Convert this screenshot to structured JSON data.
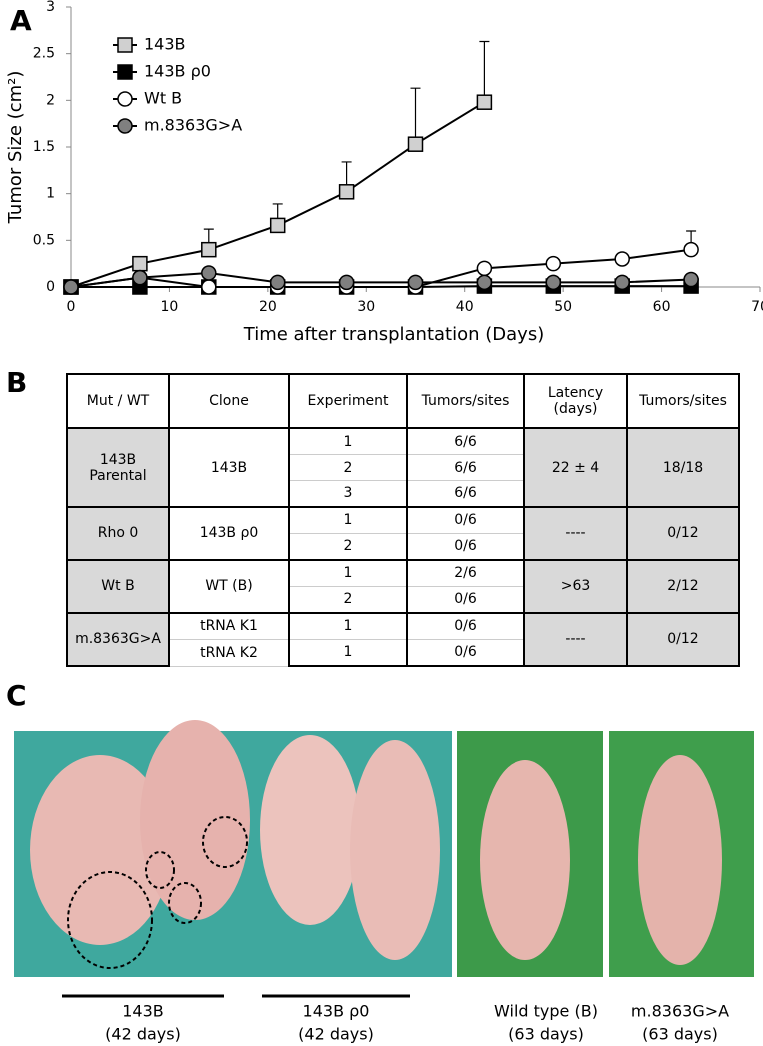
{
  "panel_labels": [
    "A",
    "B",
    "C"
  ],
  "chart_data": {
    "type": "line",
    "x_label": "Time after transplantation (Days)",
    "y_label": "Tumor Size (cm²)",
    "xlim": [
      0,
      70
    ],
    "xticks": [
      0,
      10,
      20,
      30,
      40,
      50,
      60,
      70
    ],
    "ylim": [
      0,
      3
    ],
    "yticks": [
      0,
      0.5,
      1,
      1.5,
      2,
      2.5,
      3
    ],
    "legend": "upper left",
    "series": [
      {
        "name": "143B",
        "marker": "square",
        "color": "#d0d0d0",
        "x": [
          0,
          7,
          14,
          21,
          28,
          35,
          42
        ],
        "values": [
          0,
          0.25,
          0.4,
          0.66,
          1.02,
          1.53,
          1.98
        ],
        "errors": [
          null,
          null,
          0.22,
          0.23,
          0.32,
          0.6,
          0.65
        ]
      },
      {
        "name": "143B ρ0",
        "marker": "square",
        "color": "#000000",
        "x": [
          0,
          7,
          14,
          21,
          28,
          35,
          42,
          49,
          56,
          63
        ],
        "values": [
          0,
          0,
          0,
          0,
          0,
          0,
          0.01,
          0.01,
          0.01,
          0.01
        ],
        "errors": [
          null,
          null,
          null,
          null,
          null,
          null,
          null,
          null,
          null,
          null
        ]
      },
      {
        "name": "Wt B",
        "marker": "circle",
        "color": "#ffffff",
        "x": [
          0,
          7,
          14,
          21,
          28,
          35,
          42,
          49,
          56,
          63
        ],
        "values": [
          0,
          0.1,
          0,
          0,
          0,
          0,
          0.2,
          0.25,
          0.3,
          0.4
        ],
        "errors": [
          null,
          null,
          null,
          null,
          null,
          null,
          null,
          null,
          null,
          0.2
        ]
      },
      {
        "name": "m.8363G>A",
        "marker": "circle",
        "color": "#808080",
        "x": [
          0,
          7,
          14,
          21,
          28,
          35,
          42,
          49,
          56,
          63
        ],
        "values": [
          0,
          0.1,
          0.15,
          0.05,
          0.05,
          0.05,
          0.05,
          0.05,
          0.05,
          0.08
        ],
        "errors": [
          null,
          null,
          null,
          null,
          null,
          null,
          null,
          null,
          null,
          null
        ]
      }
    ]
  },
  "table": {
    "header": [
      "Mut / WT",
      "Clone",
      "Experiment",
      "Tumors/sites",
      "Latency (days)",
      "Tumors/sites"
    ],
    "groups": [
      {
        "mut": "143B Parental",
        "clones": [
          "143B"
        ],
        "rows": [
          [
            "1",
            "6/6"
          ],
          [
            "2",
            "6/6"
          ],
          [
            "3",
            "6/6"
          ]
        ],
        "latency": "22 ± 4",
        "total": "18/18"
      },
      {
        "mut": "Rho 0",
        "clones": [
          "143B ρ0"
        ],
        "rows": [
          [
            "1",
            "0/6"
          ],
          [
            "2",
            "0/6"
          ]
        ],
        "latency": "----",
        "total": "0/12"
      },
      {
        "mut": "Wt B",
        "clones": [
          "WT (B)"
        ],
        "rows": [
          [
            "1",
            "2/6"
          ],
          [
            "2",
            "0/6"
          ]
        ],
        "latency": ">63",
        "total": "2/12"
      },
      {
        "mut": "m.8363G>A",
        "clones": [
          "tRNA K1",
          "tRNA K2"
        ],
        "rows": [
          [
            "1",
            "0/6"
          ],
          [
            "1",
            "0/6"
          ]
        ],
        "latency": "----",
        "total": "0/12"
      }
    ]
  },
  "photos": {
    "captions": [
      {
        "label": "143B",
        "days": "(42 days)"
      },
      {
        "label": "143B ρ0",
        "days": "(42 days)"
      },
      {
        "label": "Wild type (B)",
        "days": "(63 days)"
      },
      {
        "label": "m.8363G>A",
        "days": "(63 days)"
      }
    ]
  }
}
